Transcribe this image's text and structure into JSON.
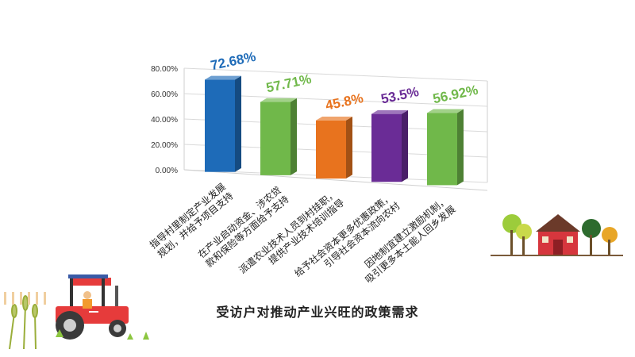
{
  "chart_data": {
    "type": "bar",
    "title": "受访户对推动产业兴旺的政策需求",
    "categories": [
      "指导村里制定产业发展规划，并给予项目支持",
      "在产业启动资金、涉农贷款和保险等方面给予支持",
      "派遣农业技术人员到村挂职，提供产业技术培训指导",
      "给予社会资本更多优惠政策，引导社会资本流向农村",
      "因地制宜建立激励机制，吸引更多本土能人回乡发展"
    ],
    "category_lines": [
      [
        "指导村里制定产业发展",
        "规划，并给予项目支持"
      ],
      [
        "在产业启动资金、涉农贷",
        "款和保险等方面给予支持"
      ],
      [
        "派遣农业技术人员到村挂职，",
        "提供产业技术培训指导"
      ],
      [
        "给予社会资本更多优惠政策，",
        "引导社会资本流向农村"
      ],
      [
        "因地制宜建立激励机制，",
        "吸引更多本土能人回乡发展"
      ]
    ],
    "values": [
      72.68,
      57.71,
      45.8,
      53.5,
      56.92
    ],
    "value_labels": [
      "72.68%",
      "57.71%",
      "45.8%",
      "53.5%",
      "56.92%"
    ],
    "bar_colors": [
      "#1e6bb8",
      "#70b84a",
      "#e8731e",
      "#6a2c96",
      "#70b84a"
    ],
    "label_colors": [
      "#1e6bb8",
      "#70b84a",
      "#e8731e",
      "#6a2c96",
      "#70b84a"
    ],
    "y_ticks": [
      "0.00%",
      "20.00%",
      "40.00%",
      "60.00%",
      "80.00%"
    ],
    "ylim": [
      0,
      80
    ],
    "grid": true,
    "legend": "none"
  }
}
